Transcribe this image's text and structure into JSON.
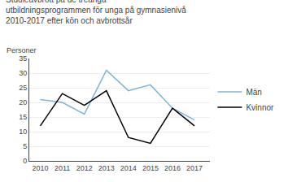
{
  "chart_data": {
    "type": "line",
    "title": "Studieavbrott på de treåriga\nutbildningsprogrammen för unga på gymnasienivå\n2010-2017 efter kön och avbrottsår",
    "ylabel": "Personer",
    "x": [
      2010,
      2011,
      2012,
      2013,
      2014,
      2015,
      2016,
      2017
    ],
    "series": [
      {
        "name": "Män",
        "color": "#7fb3d9",
        "values": [
          21,
          20,
          16,
          31,
          24,
          26,
          18,
          14
        ]
      },
      {
        "name": "Kvinnor",
        "color": "#000000",
        "values": [
          12,
          23,
          19,
          24,
          8,
          6,
          18,
          12
        ]
      }
    ],
    "xlim": [
      2009.5,
      2017.7
    ],
    "xticks": [
      2010,
      2011,
      2012,
      2013,
      2014,
      2015,
      2016,
      2017
    ],
    "ylim": [
      0,
      35
    ],
    "yticks": [
      0,
      5,
      10,
      15,
      20,
      25,
      30,
      35
    ],
    "grid": true,
    "legend": "right"
  }
}
